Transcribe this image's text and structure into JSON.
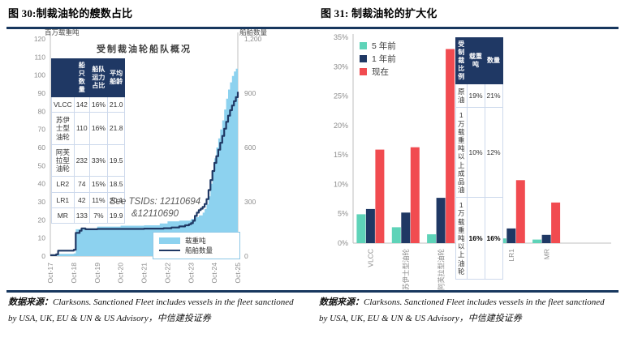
{
  "figures": {
    "fig30": {
      "title": "图 30:制裁油轮的艘数占比"
    },
    "fig31": {
      "title": "图 31: 制裁油轮的扩大化"
    }
  },
  "footer": {
    "source_label": "数据来源：",
    "source_text": "Clarksons. Sanctioned Fleet includes vessels in the fleet sanctioned by USA, UK, EU & UN & US Advisory，中信建投证券"
  },
  "colors": {
    "navy": "#1F3864",
    "area_blue": "#8DD2EF",
    "teal": "#5ED3B8",
    "red": "#F14B50",
    "rule": "#17375E",
    "axis_gray": "#BFBFBF"
  },
  "chart_data": [
    {
      "type": "area",
      "title": "受制裁油轮船队概况",
      "y_left": {
        "label": "百万载重吨",
        "min": 0,
        "max": 120,
        "step": 10
      },
      "y_right": {
        "label": "船舶数量",
        "min": 0,
        "max": 1200,
        "step": 300
      },
      "x_ticks": [
        "Oct-17",
        "Oct-18",
        "Oct-19",
        "Oct-20",
        "Oct-21",
        "Oct-22",
        "Oct-23",
        "Oct-24",
        "Oct-25"
      ],
      "x_unit": "months since Oct-17 (0–96)",
      "annotation": [
        "See TSIDs: 12110694",
        "&12110690"
      ],
      "series": [
        {
          "name": "载重吨",
          "style": "area",
          "axis": "left",
          "color": "#8DD2EF",
          "points": [
            [
              0,
              0.3
            ],
            [
              4,
              1.2
            ],
            [
              12,
              1.5
            ],
            [
              13,
              14.8
            ],
            [
              16,
              15.3
            ],
            [
              24,
              16.3
            ],
            [
              36,
              16.8
            ],
            [
              48,
              17
            ],
            [
              56,
              18
            ],
            [
              60,
              19.2
            ],
            [
              66,
              19.6
            ],
            [
              72,
              20.5
            ],
            [
              74,
              21.5
            ],
            [
              76,
              22.5
            ],
            [
              78,
              24
            ],
            [
              79,
              26
            ],
            [
              80,
              28.5
            ],
            [
              81,
              33
            ],
            [
              82,
              40
            ],
            [
              83,
              47
            ],
            [
              84,
              54
            ],
            [
              85,
              60
            ],
            [
              86,
              65
            ],
            [
              87,
              70
            ],
            [
              88,
              75
            ],
            [
              89,
              81
            ],
            [
              90,
              87
            ],
            [
              91,
              92
            ],
            [
              92,
              96
            ],
            [
              93,
              99.5
            ],
            [
              94,
              102
            ],
            [
              95,
              103.5
            ],
            [
              96,
              105
            ]
          ]
        },
        {
          "name": "船舶数量",
          "style": "line",
          "axis": "right",
          "color": "#1F3864",
          "points": [
            [
              0,
              5
            ],
            [
              3,
              10
            ],
            [
              4,
              30
            ],
            [
              12,
              35
            ],
            [
              13,
              128
            ],
            [
              15,
              140
            ],
            [
              16,
              153
            ],
            [
              18,
              148
            ],
            [
              24,
              150
            ],
            [
              36,
              150
            ],
            [
              48,
              152
            ],
            [
              58,
              154
            ],
            [
              62,
              158
            ],
            [
              66,
              164
            ],
            [
              69,
              170
            ],
            [
              71,
              176
            ],
            [
              72,
              182
            ],
            [
              73,
              195
            ],
            [
              74,
              222
            ],
            [
              75,
              240
            ],
            [
              76,
              254
            ],
            [
              77,
              262
            ],
            [
              78,
              272
            ],
            [
              79,
              288
            ],
            [
              80,
              315
            ],
            [
              81,
              365
            ],
            [
              82,
              420
            ],
            [
              83,
              470
            ],
            [
              84,
              515
            ],
            [
              85,
              552
            ],
            [
              86,
              588
            ],
            [
              87,
              626
            ],
            [
              88,
              664
            ],
            [
              89,
              704
            ],
            [
              90,
              742
            ],
            [
              91,
              776
            ],
            [
              92,
              806
            ],
            [
              93,
              832
            ],
            [
              94,
              856
            ],
            [
              95,
              878
            ],
            [
              96,
              908
            ]
          ]
        }
      ],
      "table": {
        "headers": [
          "",
          "船只数量",
          "船队运力占比",
          "平均船龄"
        ],
        "rows": [
          {
            "cells": [
              "VLCC",
              "142",
              "16%",
              "21.0"
            ],
            "bold": false
          },
          {
            "cells": [
              "苏伊士型油轮",
              "110",
              "16%",
              "21.8"
            ],
            "bold": false
          },
          {
            "cells": [
              "阿芙拉型油轮",
              "232",
              "33%",
              "19.5"
            ],
            "bold": false
          },
          {
            "cells": [
              "LR2",
              "74",
              "15%",
              "18.5"
            ],
            "bold": false
          },
          {
            "cells": [
              "LR1",
              "42",
              "11%",
              "20.1"
            ],
            "bold": false
          },
          {
            "cells": [
              "MR",
              "133",
              "7%",
              "19.9"
            ],
            "bold": false
          }
        ]
      }
    },
    {
      "type": "bar",
      "categories": [
        "VLCC",
        "苏伊士型油轮",
        "阿芙拉型油轮",
        "LR2",
        "LR1",
        "MR"
      ],
      "series": [
        {
          "name": "5 年前",
          "color": "#5ED3B8",
          "values": [
            4.9,
            2.7,
            1.5,
            0.3,
            0.8,
            0.6
          ]
        },
        {
          "name": "1 年前",
          "color": "#1F3864",
          "values": [
            5.8,
            5.2,
            7.7,
            2.6,
            2.5,
            1.4
          ]
        },
        {
          "name": "现在",
          "color": "#F14B50",
          "values": [
            15.9,
            16.3,
            33.0,
            14.7,
            10.7,
            6.9
          ]
        }
      ],
      "ylim": [
        0,
        35
      ],
      "ytick_step": 5,
      "ytick_suffix": "%",
      "legend_position": "top-left",
      "table": {
        "headers": [
          "受制裁\n比例",
          "载重吨",
          "数量"
        ],
        "rows": [
          {
            "cells": [
              "原油",
              "19%",
              "21%"
            ],
            "bold": false
          },
          {
            "cells": [
              "1 万载重吨以上\n成品油",
              "10%",
              "12%"
            ],
            "bold": false
          },
          {
            "cells": [
              "1 万载重吨以上\n油轮",
              "16%",
              "16%"
            ],
            "bold": true
          }
        ]
      }
    }
  ]
}
